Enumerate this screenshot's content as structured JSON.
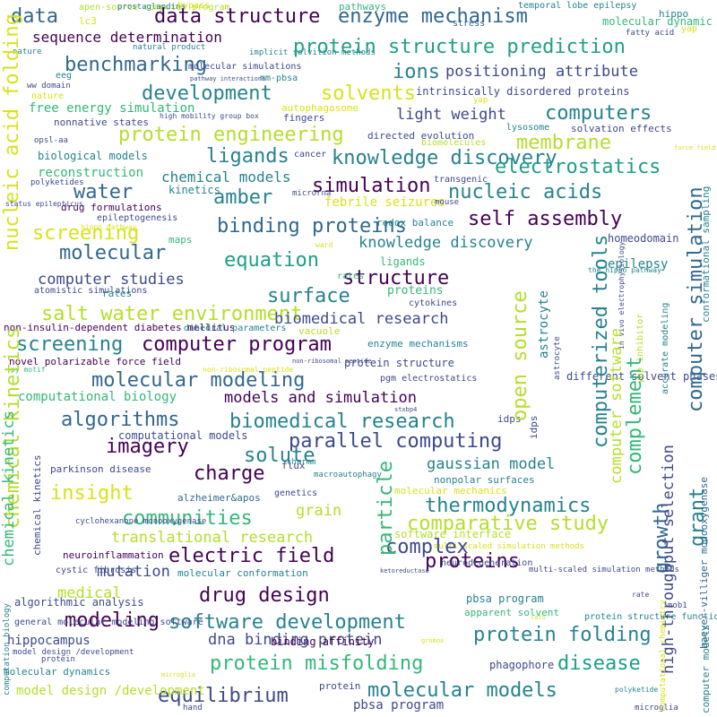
{
  "word_cloud": {
    "colors": {
      "background": "#ffffff",
      "dark_purple": "#440154",
      "purple": "#482878",
      "indigo": "#3e4a89",
      "blue": "#31688e",
      "teal": "#26828e",
      "green_teal": "#1f9e89",
      "green": "#35b779",
      "light_green": "#6ece58",
      "lime": "#b5de2b",
      "yellow": "#d8e219"
    },
    "words": [
      "data structure",
      "enzyme mechanism",
      "protein structure prediction",
      "sequence determination",
      "benchmarking",
      "positioning attribute",
      "ions",
      "development",
      "solvents",
      "nucleic acid folding",
      "protein engineering",
      "computers",
      "membrane",
      "electrostatics",
      "simulation",
      "nucleic acids",
      "binding proteins",
      "self assembly",
      "molecular",
      "equation",
      "structure",
      "surface",
      "computer program",
      "molecular modeling",
      "salt water environment",
      "algorithms",
      "biomedical research",
      "parallel computing",
      "models and simulation",
      "imagery",
      "solute",
      "charge",
      "insight",
      "gaussian model",
      "thermodynamics",
      "communities",
      "comparative study",
      "translational research",
      "electric field",
      "complex",
      "proteins",
      "drug design",
      "software development",
      "protein folding",
      "modeling",
      "protein misfolding",
      "disease",
      "equilibrium",
      "molecular models",
      "computer simulation",
      "drug discovery",
      "open source",
      "computerized tools",
      "computer software",
      "growth",
      "grant",
      "complement",
      "particle",
      "chemical kinetics",
      "computer studies",
      "water",
      "amber",
      "ligands",
      "solutions",
      "knowledge discovery",
      "light weight",
      "free energy simulation",
      "data",
      "screening",
      "multi-scale modeling",
      "computational biology",
      "physics",
      "mutation",
      "medical",
      "dna binding protein",
      "grain",
      "science",
      "chemical models",
      "reconstruction",
      "biological models",
      "drug formulations",
      "epileptogenesis",
      "kinetics",
      "maps",
      "better molecular simulations",
      "non-insulin-dependent diabetes mellitus",
      "novel polarizable force field",
      "computational models",
      "parkinson disease",
      "alzheimer&apos",
      "neuroinflammation",
      "cystic fibrosis",
      "molecular conformation",
      "algorithmic analysis",
      "hippocampus",
      "binding affinity",
      "ionic interactions",
      "general molecular modeling software",
      "model design /development",
      "molecular dynamics",
      "hand",
      "pbsa program",
      "high-throughput selection",
      "protein structure function",
      "apparent solvent",
      "neurodegeneration",
      "software interface",
      "multi-scaled simulation methods",
      "molecular mechanics",
      "nonpolar surfaces",
      "flux",
      "charmm",
      "macroautophagy",
      "genetics",
      "cyclohexanone monooxygenase",
      "chemical kinetics",
      "epilepsy",
      "homeodomain",
      "conformational sampling",
      "accurate modeling",
      "yap inhibitor",
      "baeyer-villiger monooxygenase",
      "computer models",
      "disorder prevention",
      "amyloidosis",
      "cytokines",
      "rates",
      "atomistic simulations",
      "vacuole",
      "different structural states",
      "enzyme mechanisms",
      "dihedral parameters",
      "protein structure",
      "pgm electrostatics",
      "idps",
      "different solvent phases",
      "ward",
      "protein sequence",
      "redox balance",
      "febrile seizures",
      "transgenic",
      "mouse",
      "microrna",
      "cancer",
      "biomolecules",
      "solvation effects",
      "directed evolution",
      "lysosome",
      "intrinsically disordered proteins",
      "nonnative states",
      "fingers",
      "multi-scaled set",
      "autophagosome",
      "opsl-aa",
      "polyketides",
      "status epilepticus",
      "hippo pathway",
      "biomolecular dynamics",
      "cofactor specificity",
      "alchemical simulation",
      "electrostatic",
      "eeg",
      "molecular simulations",
      "mm-pbsa",
      "ww domain",
      "nature",
      "natural product",
      "implicit solvition methods",
      "pathway interactions",
      "processes",
      "apen-source computer program",
      "prostaglandins",
      "bypass",
      "pathways",
      "lc3",
      "stress",
      "temporal lobe epilepsy",
      "molecular dynamic simulation",
      "hippo",
      "fatty acid",
      "yap",
      "high mobility group box",
      "force field",
      "in vivo electrophysiology",
      "the hippo pathway",
      "py motif",
      "non-ribosomal peptide",
      "astrocyte",
      "stxbp4",
      "cmap",
      "computation biology",
      "ketoreductase",
      "rate",
      "mob1",
      "gromos",
      "phagophore",
      "lats",
      "computational chemistry",
      "protein",
      "polyketide",
      "microglia"
    ]
  }
}
